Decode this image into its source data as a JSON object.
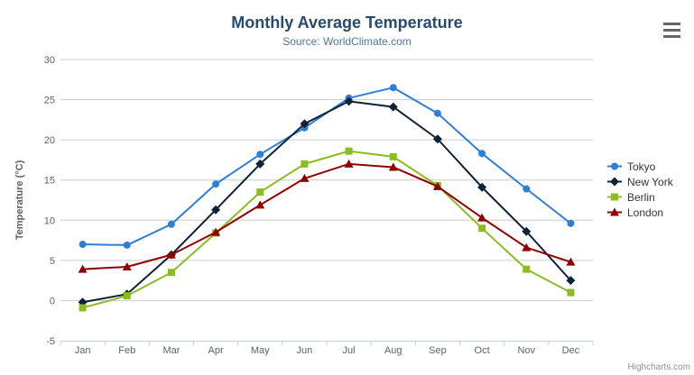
{
  "header": {
    "title": "Monthly Average Temperature",
    "subtitle": "Source: WorldClimate.com"
  },
  "menu": {
    "icon": "hamburger-icon"
  },
  "credit": "Highcharts.com",
  "colors": {
    "title": "#274b6d",
    "subtitle": "#4d759e",
    "axis_label": "#606063",
    "axis_title": "#4d759e",
    "axis_line": "#c0d0e0",
    "gridline": "#cccccc",
    "legend_text": "#333333",
    "credit": "#909090",
    "burger": "#666666"
  },
  "chart_data": {
    "type": "line",
    "title": "Monthly Average Temperature",
    "subtitle": "Source: WorldClimate.com",
    "categories": [
      "Jan",
      "Feb",
      "Mar",
      "Apr",
      "May",
      "Jun",
      "Jul",
      "Aug",
      "Sep",
      "Oct",
      "Nov",
      "Dec"
    ],
    "xlabel": "",
    "ylabel": "Temperature (°C)",
    "ylim": [
      -5,
      30
    ],
    "yticks": [
      -5,
      0,
      5,
      10,
      15,
      20,
      25,
      30
    ],
    "grid": true,
    "legend_position": "right",
    "series": [
      {
        "name": "Tokyo",
        "color": "#2f7ed8",
        "marker": "circle",
        "values": [
          7.0,
          6.9,
          9.5,
          14.5,
          18.2,
          21.5,
          25.2,
          26.5,
          23.3,
          18.3,
          13.9,
          9.6
        ]
      },
      {
        "name": "New York",
        "color": "#0d233a",
        "marker": "diamond",
        "values": [
          -0.2,
          0.8,
          5.7,
          11.3,
          17.0,
          22.0,
          24.8,
          24.1,
          20.1,
          14.1,
          8.6,
          2.5
        ]
      },
      {
        "name": "Berlin",
        "color": "#8bbc21",
        "marker": "square",
        "values": [
          -0.9,
          0.6,
          3.5,
          8.4,
          13.5,
          17.0,
          18.6,
          17.9,
          14.3,
          9.0,
          3.9,
          1.0
        ]
      },
      {
        "name": "London",
        "color": "#910000",
        "marker": "triangle",
        "values": [
          3.9,
          4.2,
          5.7,
          8.5,
          11.9,
          15.2,
          17.0,
          16.6,
          14.2,
          10.3,
          6.6,
          4.8
        ]
      }
    ]
  }
}
